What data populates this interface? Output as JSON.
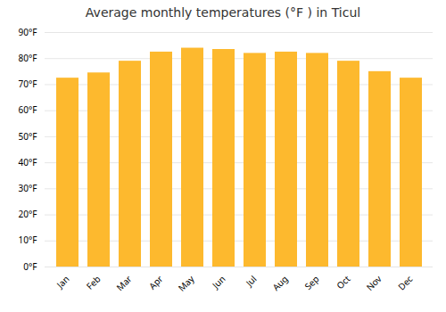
{
  "chart_data": {
    "type": "bar",
    "title": "Average monthly temperatures (°F ) in Ticul",
    "categories": [
      "Jan",
      "Feb",
      "Mar",
      "Apr",
      "May",
      "Jun",
      "Jul",
      "Aug",
      "Sep",
      "Oct",
      "Nov",
      "Dec"
    ],
    "values": [
      72.5,
      74.5,
      79,
      82.5,
      84,
      83.5,
      82,
      82.5,
      82,
      79,
      75,
      72.5
    ],
    "color": "#FDB92E",
    "ylim": [
      0,
      90
    ],
    "yticks": [
      {
        "value": 0,
        "label": "0°F"
      },
      {
        "value": 10,
        "label": "10°F"
      },
      {
        "value": 20,
        "label": "20°F"
      },
      {
        "value": 30,
        "label": "30°F"
      },
      {
        "value": 40,
        "label": "40°F"
      },
      {
        "value": 50,
        "label": "50°F"
      },
      {
        "value": 60,
        "label": "60°F"
      },
      {
        "value": 70,
        "label": "70°F"
      },
      {
        "value": 80,
        "label": "80°F"
      },
      {
        "value": 90,
        "label": "90°F"
      }
    ],
    "grid": true
  }
}
